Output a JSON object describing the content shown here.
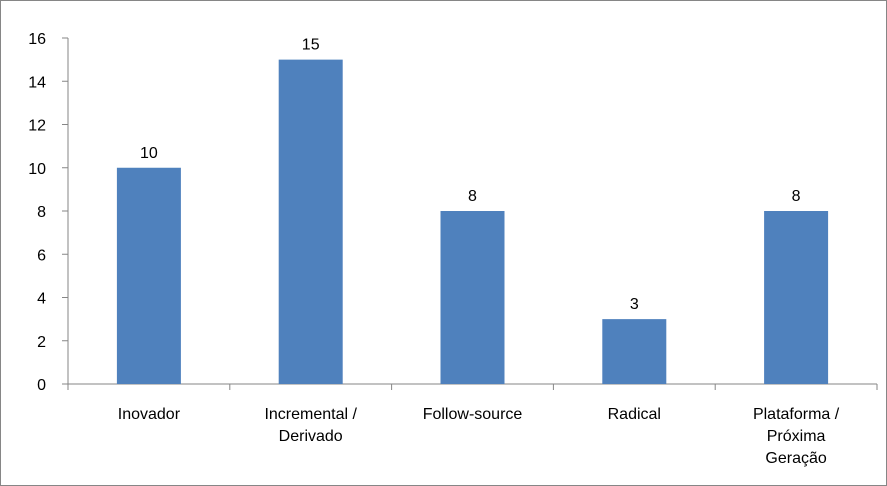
{
  "chart_data": {
    "type": "bar",
    "categories": [
      [
        "Inovador"
      ],
      [
        "Incremental /",
        "Derivado"
      ],
      [
        "Follow-source"
      ],
      [
        "Radical"
      ],
      [
        "Plataforma /",
        "Próxima",
        "Geração"
      ]
    ],
    "values": [
      10,
      15,
      8,
      3,
      8
    ],
    "data_labels": [
      "10",
      "15",
      "8",
      "3",
      "8"
    ],
    "yticks": [
      0,
      2,
      4,
      6,
      8,
      10,
      12,
      14,
      16
    ],
    "ylim": [
      0,
      16
    ],
    "grid": false,
    "legend": "none",
    "title": "",
    "xlabel": "",
    "ylabel": "",
    "colors": {
      "bar": "#4F81BD",
      "axis": "#868686",
      "text": "#000000"
    }
  }
}
